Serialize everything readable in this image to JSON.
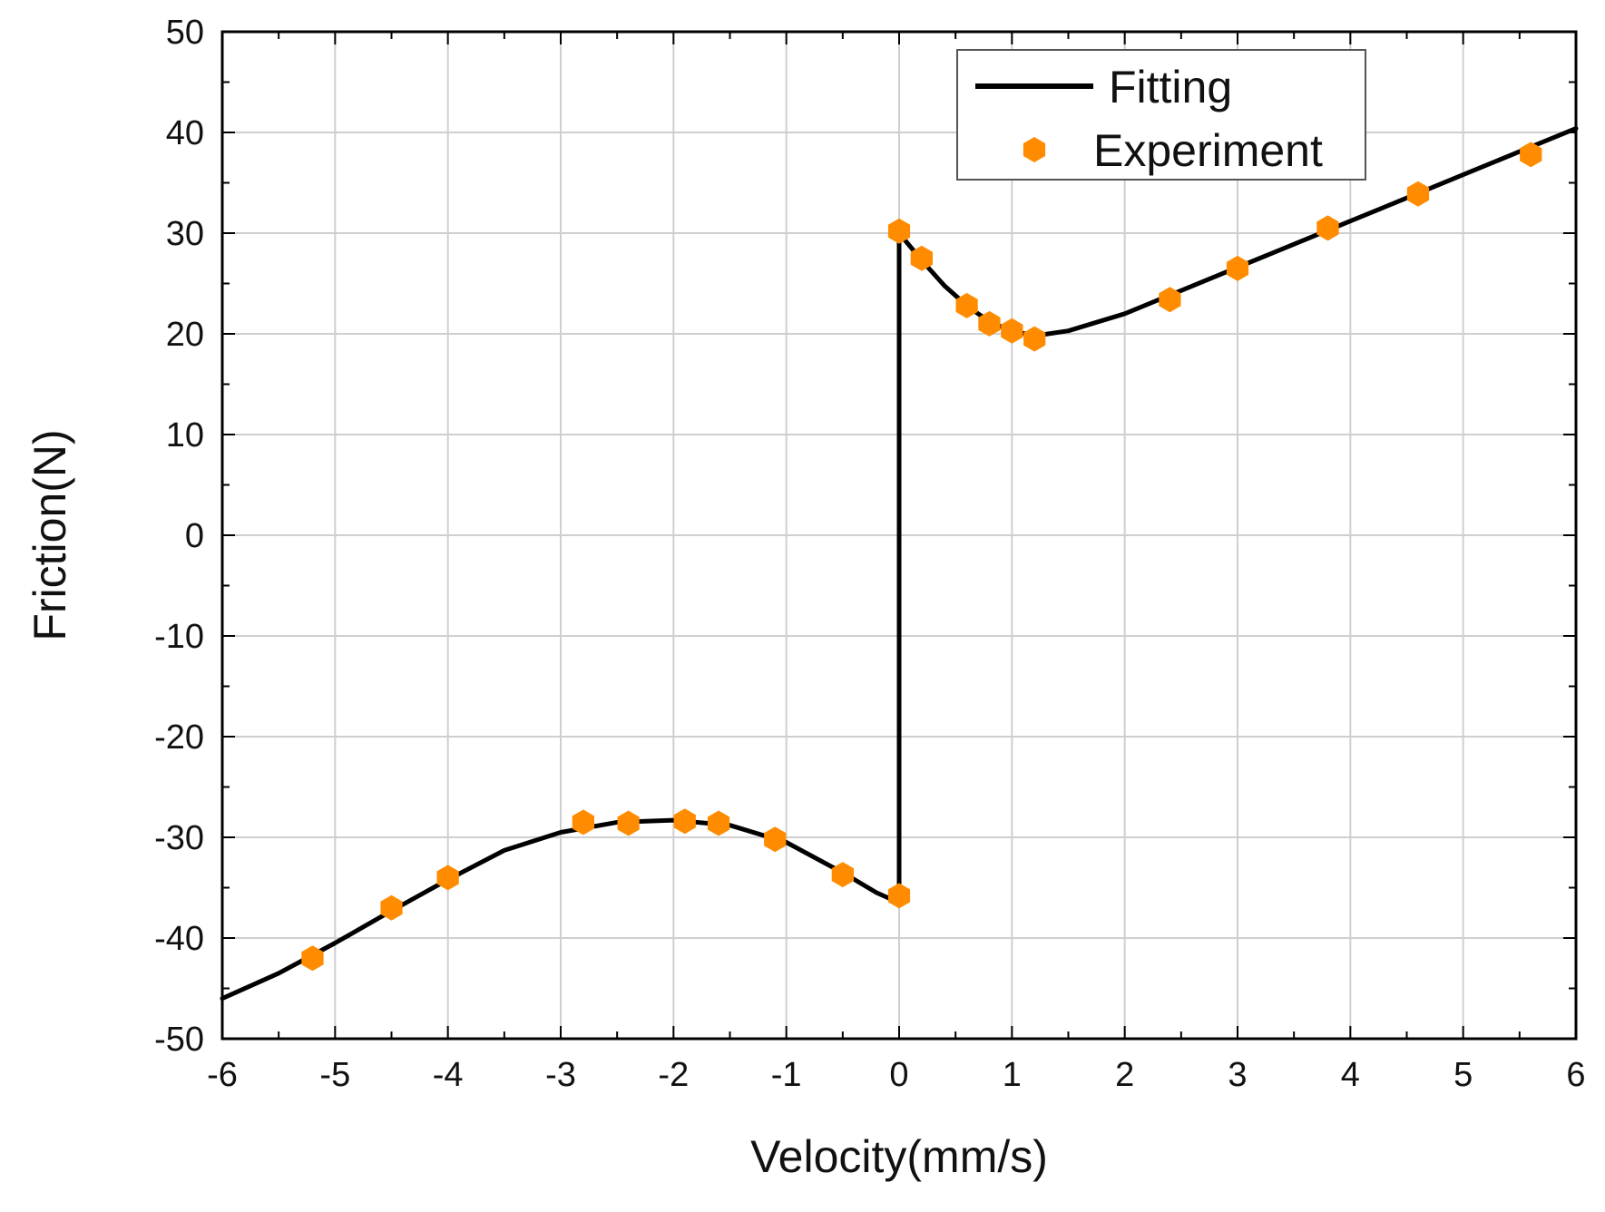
{
  "chart_data": {
    "type": "line",
    "title": "",
    "xlabel": "Velocity(mm/s)",
    "ylabel": "Friction(N)",
    "xlim": [
      -6,
      6
    ],
    "ylim": [
      -50,
      50
    ],
    "xticks": [
      "-6",
      "-5",
      "-4",
      "-3",
      "-2",
      "-1",
      "0",
      "1",
      "2",
      "3",
      "4",
      "5",
      "6"
    ],
    "yticks": [
      "50",
      "40",
      "30",
      "20",
      "10",
      "0",
      "-10",
      "-20",
      "-30",
      "-40",
      "-50"
    ],
    "grid": true,
    "legend_position": "top-right",
    "series": [
      {
        "name": "Fitting",
        "kind": "line",
        "color": "#000000",
        "x": [
          -6,
          -5.5,
          -5,
          -4.5,
          -4,
          -3.5,
          -3,
          -2.5,
          -2,
          -1.5,
          -1,
          -0.5,
          -0.2,
          0,
          0,
          0.2,
          0.4,
          0.6,
          0.8,
          1.0,
          1.2,
          1.5,
          2,
          2.5,
          3,
          3.5,
          4,
          4.5,
          5,
          5.5,
          6
        ],
        "y": [
          -46,
          -43.5,
          -40.5,
          -37.3,
          -34.2,
          -31.3,
          -29.5,
          -28.5,
          -28.3,
          -28.8,
          -30.5,
          -33.5,
          -35.5,
          -36.5,
          30,
          27.3,
          24.8,
          22.8,
          21.2,
          20.3,
          19.8,
          20.3,
          22,
          24.3,
          26.6,
          28.9,
          31.2,
          33.5,
          35.8,
          38.1,
          40.4
        ]
      },
      {
        "name": "Experiment",
        "kind": "scatter",
        "color": "#ff8c00",
        "x": [
          -5.2,
          -4.5,
          -4.0,
          -2.8,
          -2.4,
          -1.9,
          -1.6,
          -1.1,
          -0.5,
          0,
          0,
          0.2,
          0.6,
          0.8,
          1.0,
          1.2,
          2.4,
          3.0,
          3.8,
          4.6,
          5.6
        ],
        "y": [
          -42,
          -37,
          -34,
          -28.5,
          -28.6,
          -28.4,
          -28.6,
          -30.2,
          -33.7,
          -35.8,
          30.2,
          27.5,
          22.8,
          21.0,
          20.3,
          19.5,
          23.4,
          26.5,
          30.5,
          33.9,
          37.8
        ]
      }
    ]
  }
}
